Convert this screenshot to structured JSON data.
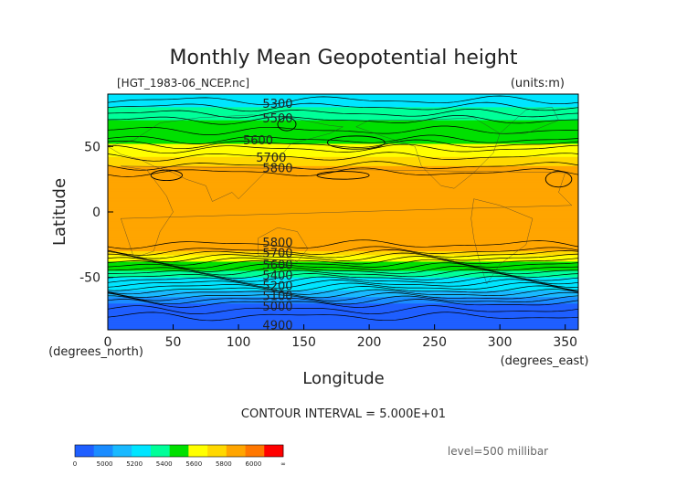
{
  "chart_data": {
    "type": "heatmap",
    "title": "Monthly Mean Geopotential height",
    "file_label": "[HGT_1983-06_NCEP.nc]",
    "units_label": "(units:m)",
    "xlabel": "Longitude",
    "x_units": "(degrees_east)",
    "ylabel": "Latitude",
    "y_units": "(degrees_north)",
    "xlim": [
      0,
      360
    ],
    "ylim": [
      -90,
      90
    ],
    "x_ticks": [
      0,
      50,
      100,
      150,
      200,
      250,
      300,
      350
    ],
    "y_ticks": [
      50,
      0,
      -50
    ],
    "grid": false,
    "contour_interval_text": "CONTOUR INTERVAL = 5.000E+01",
    "level_text": "level=500 millibar",
    "variable": "geopotential height",
    "month": "1983-06",
    "contour_labels": [
      {
        "value": "5300",
        "lon": 130,
        "lat": 83
      },
      {
        "value": "5500",
        "lon": 130,
        "lat": 72
      },
      {
        "value": "5600",
        "lon": 115,
        "lat": 55
      },
      {
        "value": "5700",
        "lon": 125,
        "lat": 42
      },
      {
        "value": "5800",
        "lon": 130,
        "lat": 34
      },
      {
        "value": "5800",
        "lon": 130,
        "lat": -23
      },
      {
        "value": "5700",
        "lon": 130,
        "lat": -31
      },
      {
        "value": "5600",
        "lon": 130,
        "lat": -40
      },
      {
        "value": "5400",
        "lon": 130,
        "lat": -48
      },
      {
        "value": "5200",
        "lon": 130,
        "lat": -56
      },
      {
        "value": "5100",
        "lon": 130,
        "lat": -64
      },
      {
        "value": "5000",
        "lon": 130,
        "lat": -72
      },
      {
        "value": "4900",
        "lon": 130,
        "lat": -86
      }
    ],
    "latitude_profile": {
      "lat": [
        90,
        80,
        70,
        62,
        55,
        48,
        42,
        35,
        30,
        0,
        -25,
        -30,
        -35,
        -40,
        -45,
        -50,
        -55,
        -60,
        -65,
        -70,
        -75,
        -80,
        -90
      ],
      "height_m": [
        5300,
        5400,
        5500,
        5550,
        5600,
        5700,
        5750,
        5800,
        5850,
        5880,
        5850,
        5800,
        5700,
        5600,
        5500,
        5400,
        5300,
        5200,
        5100,
        5000,
        4950,
        4900,
        4880
      ]
    },
    "colorbar": {
      "colors": [
        "#1f5fff",
        "#1a8cff",
        "#19b9ff",
        "#00e5ff",
        "#00ff99",
        "#00e000",
        "#ffff00",
        "#ffd800",
        "#ffa500",
        "#ff7700",
        "#ff0000"
      ],
      "tick_labels": [
        "0",
        "5000",
        "5200",
        "5400",
        "5600",
        "5800",
        "6000",
        "∞"
      ]
    }
  }
}
